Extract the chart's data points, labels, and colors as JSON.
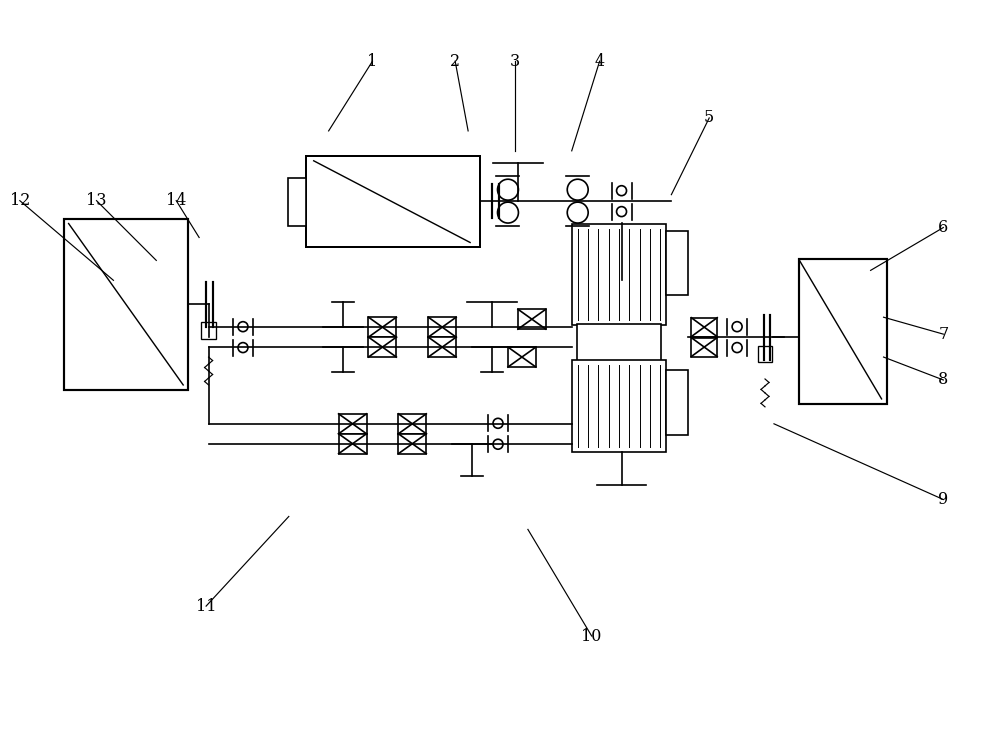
{
  "bg_color": "#ffffff",
  "line_color": "#000000",
  "fig_width": 10.0,
  "fig_height": 7.42,
  "annotations": [
    [
      "1",
      3.72,
      6.82,
      3.28,
      6.12
    ],
    [
      "2",
      4.55,
      6.82,
      4.68,
      6.12
    ],
    [
      "3",
      5.15,
      6.82,
      5.15,
      5.92
    ],
    [
      "4",
      6.0,
      6.82,
      5.72,
      5.92
    ],
    [
      "5",
      7.1,
      6.25,
      6.72,
      5.48
    ],
    [
      "6",
      9.45,
      5.15,
      8.72,
      4.72
    ],
    [
      "7",
      9.45,
      4.08,
      8.85,
      4.25
    ],
    [
      "8",
      9.45,
      3.62,
      8.85,
      3.85
    ],
    [
      "9",
      9.45,
      2.42,
      7.75,
      3.18
    ],
    [
      "10",
      5.92,
      1.05,
      5.28,
      2.12
    ],
    [
      "11",
      2.05,
      1.35,
      2.88,
      2.25
    ],
    [
      "12",
      0.18,
      5.42,
      1.12,
      4.62
    ],
    [
      "13",
      0.95,
      5.42,
      1.55,
      4.82
    ],
    [
      "14",
      1.75,
      5.42,
      1.98,
      5.05
    ]
  ]
}
